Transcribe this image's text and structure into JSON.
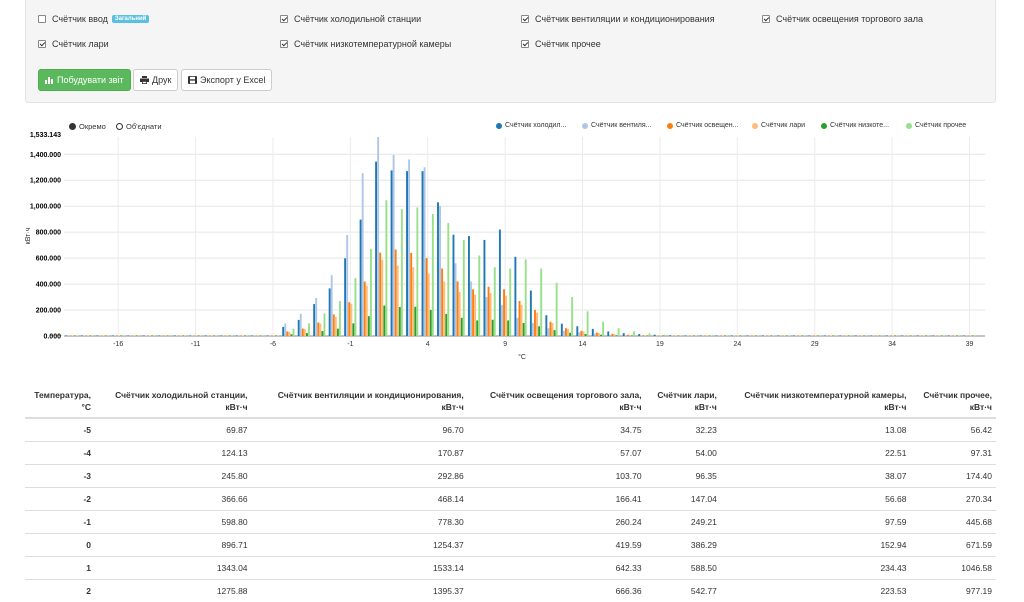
{
  "filters": {
    "checkboxes": [
      {
        "label": "Счётчик ввод",
        "checked": false,
        "badge": "Загальний"
      },
      {
        "label": "Счётчик холодильной станции",
        "checked": true
      },
      {
        "label": "Счётчик вентиляции и кондиционирования",
        "checked": true
      },
      {
        "label": "Счётчик освещения торгового зала",
        "checked": true
      },
      {
        "label": "Счётчик лари",
        "checked": true
      },
      {
        "label": "Счётчик низкотемпературной камеры",
        "checked": true
      },
      {
        "label": "Счётчик прочее",
        "checked": true
      }
    ],
    "buttons": {
      "build": "Побудувати звіт",
      "print": "Друк",
      "export": "Экспорт у Excel"
    }
  },
  "chart_controls": {
    "radio_separate": "Окремо",
    "radio_combined": "Об'єднати",
    "selected": "Окремо"
  },
  "colors": {
    "s1": "#1f77b4",
    "s2": "#aec7e8",
    "s3": "#ff7f0e",
    "s4": "#ffbb78",
    "s5": "#2ca02c",
    "s6": "#98df8a",
    "accent_green": "#5cb85c",
    "badge": "#5bc0de"
  },
  "chart_data": {
    "type": "bar",
    "xlabel": "°C",
    "ylabel": "кВт·ч",
    "ymax_label": "1,533.143",
    "ylim": [
      0,
      1533.143
    ],
    "xlim": [
      -19.5,
      40
    ],
    "ytick_labels": [
      "0.000",
      "200.000",
      "400.000",
      "600.000",
      "800.000",
      "1,000.000",
      "1,200.000",
      "1,400.000"
    ],
    "ytick_values": [
      0,
      200,
      400,
      600,
      800,
      1000,
      1200,
      1400
    ],
    "xtick_values": [
      -16,
      -11,
      -6,
      -1,
      4,
      9,
      14,
      19,
      24,
      29,
      34,
      39
    ],
    "xtick_labels": [
      "-16",
      "-11",
      "-6",
      "-1",
      "4",
      "9",
      "14",
      "19",
      "24",
      "29",
      "34",
      "39"
    ],
    "grid": true,
    "legend_position": "top-right",
    "x": [
      -20,
      -19,
      -18,
      -17,
      -16,
      -15,
      -14,
      -13,
      -12,
      -11,
      -10,
      -9,
      -8,
      -7,
      -6,
      -5,
      -4,
      -3,
      -2,
      -1,
      0,
      1,
      2,
      3,
      4,
      5,
      6,
      7,
      8,
      9,
      10,
      11,
      12,
      13,
      14,
      15,
      16,
      17,
      18,
      19,
      20,
      21,
      22,
      23,
      24,
      25,
      26,
      27,
      28,
      29,
      30,
      31,
      32,
      33,
      34,
      35,
      36,
      37,
      38,
      39
    ],
    "series": [
      {
        "name": "Счётчик холодил...",
        "values": [
          0,
          0,
          0,
          0,
          0,
          0,
          0,
          0,
          0,
          0,
          0,
          0,
          0,
          0,
          0,
          69.87,
          124.13,
          245.8,
          366.66,
          598.8,
          896.71,
          1343.04,
          1275.88,
          1270,
          1270,
          1030,
          780,
          770,
          740,
          820,
          610,
          350,
          160,
          95,
          75,
          55,
          35,
          22,
          15,
          10,
          6,
          4,
          2,
          1,
          0,
          0,
          0,
          0,
          0,
          0,
          0,
          0,
          0,
          0,
          0,
          0,
          0,
          0,
          0,
          0
        ]
      },
      {
        "name": "Счётчик вентиля...",
        "values": [
          0,
          0,
          0,
          0,
          0,
          0,
          0,
          0,
          0,
          0,
          0,
          0,
          0,
          0,
          0,
          96.7,
          170.87,
          292.86,
          468.14,
          778.3,
          1254.37,
          1533.14,
          1395.37,
          1360,
          1300,
          1000,
          560,
          420,
          300,
          240,
          140,
          100,
          60,
          40,
          28,
          18,
          10,
          6,
          4,
          2,
          1,
          0,
          0,
          0,
          0,
          0,
          0,
          0,
          0,
          0,
          0,
          0,
          0,
          0,
          0,
          0,
          0,
          0,
          0,
          0
        ]
      },
      {
        "name": "Счётчик освещен...",
        "values": [
          0,
          0,
          0,
          0,
          0,
          0,
          0,
          0,
          0,
          0,
          0,
          0,
          0,
          0,
          0,
          34.75,
          57.07,
          103.7,
          166.41,
          260.24,
          419.59,
          642.33,
          666.36,
          640,
          600,
          520,
          420,
          360,
          380,
          360,
          270,
          200,
          110,
          60,
          40,
          26,
          16,
          10,
          6,
          3,
          2,
          1,
          0,
          0,
          0,
          0,
          0,
          0,
          0,
          0,
          0,
          0,
          0,
          0,
          0,
          0,
          0,
          0,
          0,
          0
        ]
      },
      {
        "name": "Счётчик лари",
        "values": [
          0,
          0,
          0,
          0,
          0,
          0,
          0,
          0,
          0,
          0,
          0,
          0,
          0,
          0,
          0,
          32.23,
          54.0,
          96.35,
          147.04,
          249.21,
          386.29,
          588.5,
          542.77,
          530,
          480,
          420,
          340,
          320,
          330,
          310,
          240,
          180,
          100,
          55,
          36,
          22,
          14,
          8,
          5,
          3,
          1,
          0,
          0,
          0,
          0,
          0,
          0,
          0,
          0,
          0,
          0,
          0,
          0,
          0,
          0,
          0,
          0,
          0,
          0,
          0
        ]
      },
      {
        "name": "Счётчик низкоте...",
        "values": [
          0,
          0,
          0,
          0,
          0,
          0,
          0,
          0,
          0,
          0,
          0,
          0,
          0,
          0,
          0,
          13.08,
          22.51,
          38.07,
          56.68,
          97.59,
          152.94,
          234.43,
          223.53,
          225,
          200,
          170,
          140,
          120,
          125,
          120,
          100,
          75,
          45,
          25,
          16,
          10,
          6,
          4,
          2,
          1,
          0,
          0,
          0,
          0,
          0,
          0,
          0,
          0,
          0,
          0,
          0,
          0,
          0,
          0,
          0,
          0,
          0,
          0,
          0,
          0
        ]
      },
      {
        "name": "Счётчик прочее",
        "values": [
          0,
          0,
          0,
          0,
          0,
          0,
          0,
          0,
          0,
          0,
          0,
          0,
          0,
          0,
          0,
          56.42,
          97.31,
          174.4,
          270.34,
          445.68,
          671.59,
          1046.58,
          977.19,
          990,
          940,
          870,
          740,
          620,
          530,
          520,
          590,
          520,
          410,
          300,
          190,
          110,
          60,
          35,
          20,
          10,
          5,
          2,
          1,
          0,
          0,
          0,
          0,
          0,
          0,
          0,
          0,
          0,
          0,
          0,
          0,
          0,
          0,
          0,
          0,
          0
        ]
      }
    ]
  },
  "table": {
    "headers": [
      "Температура,\n°C",
      "Счётчик холодильной станции,\nкВт·ч",
      "Счётчик вентиляции и кондиционирования,\nкВт·ч",
      "Счётчик освещения торгового зала,\nкВт·ч",
      "Счётчик лари,\nкВт·ч",
      "Счётчик низкотемпературной камеры,\nкВт·ч",
      "Счётчик прочее,\nкВт·ч"
    ],
    "rows": [
      [
        "-5",
        "69.87",
        "96.70",
        "34.75",
        "32.23",
        "13.08",
        "56.42"
      ],
      [
        "-4",
        "124.13",
        "170.87",
        "57.07",
        "54.00",
        "22.51",
        "97.31"
      ],
      [
        "-3",
        "245.80",
        "292.86",
        "103.70",
        "96.35",
        "38.07",
        "174.40"
      ],
      [
        "-2",
        "366.66",
        "468.14",
        "166.41",
        "147.04",
        "56.68",
        "270.34"
      ],
      [
        "-1",
        "598.80",
        "778.30",
        "260.24",
        "249.21",
        "97.59",
        "445.68"
      ],
      [
        "0",
        "896.71",
        "1254.37",
        "419.59",
        "386.29",
        "152.94",
        "671.59"
      ],
      [
        "1",
        "1343.04",
        "1533.14",
        "642.33",
        "588.50",
        "234.43",
        "1046.58"
      ],
      [
        "2",
        "1275.88",
        "1395.37",
        "666.36",
        "542.77",
        "223.53",
        "977.19"
      ]
    ]
  }
}
